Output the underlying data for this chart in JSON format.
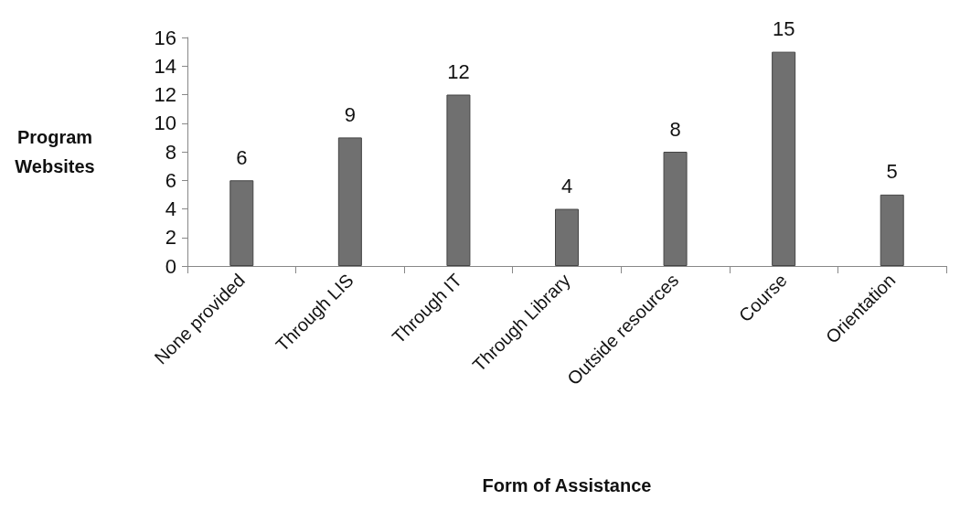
{
  "chart_data": {
    "type": "bar",
    "categories": [
      "None provided",
      "Through LIS",
      "Through IT",
      "Through Library",
      "Outside resources",
      "Course",
      "Orientation"
    ],
    "values": [
      6,
      9,
      12,
      4,
      8,
      15,
      5
    ],
    "color": "#707070",
    "xlabel": "Form of Assistance",
    "ylabel": "Program\nWebsites",
    "ylim": [
      0,
      16
    ],
    "yticks": [
      0,
      2,
      4,
      6,
      8,
      10,
      12,
      14,
      16
    ],
    "grid": false,
    "data_labels": true
  }
}
